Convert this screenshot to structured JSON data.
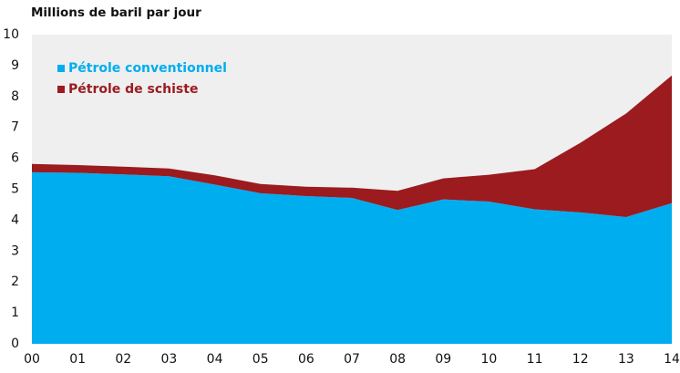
{
  "chart_data": {
    "type": "area",
    "stacked": true,
    "y_axis_label": "Millions de baril par jour",
    "categories": [
      "00",
      "01",
      "02",
      "03",
      "04",
      "05",
      "06",
      "07",
      "08",
      "09",
      "10",
      "11",
      "12",
      "13",
      "14"
    ],
    "series": [
      {
        "name": "Pétrole conventionnel",
        "color": "#00adef",
        "values": [
          5.55,
          5.53,
          5.48,
          5.42,
          5.15,
          4.87,
          4.78,
          4.72,
          4.33,
          4.67,
          4.6,
          4.35,
          4.25,
          4.1,
          4.55
        ]
      },
      {
        "name": "Pétrole de schiste",
        "color": "#9b1b1f",
        "values": [
          0.27,
          0.25,
          0.25,
          0.25,
          0.3,
          0.3,
          0.3,
          0.33,
          0.62,
          0.68,
          0.87,
          1.3,
          2.25,
          3.35,
          4.13
        ]
      }
    ],
    "ylim": [
      0,
      10
    ],
    "yticks": [
      0,
      1,
      2,
      3,
      4,
      5,
      6,
      7,
      8,
      9,
      10
    ],
    "grid": false,
    "legend": "upper left"
  }
}
